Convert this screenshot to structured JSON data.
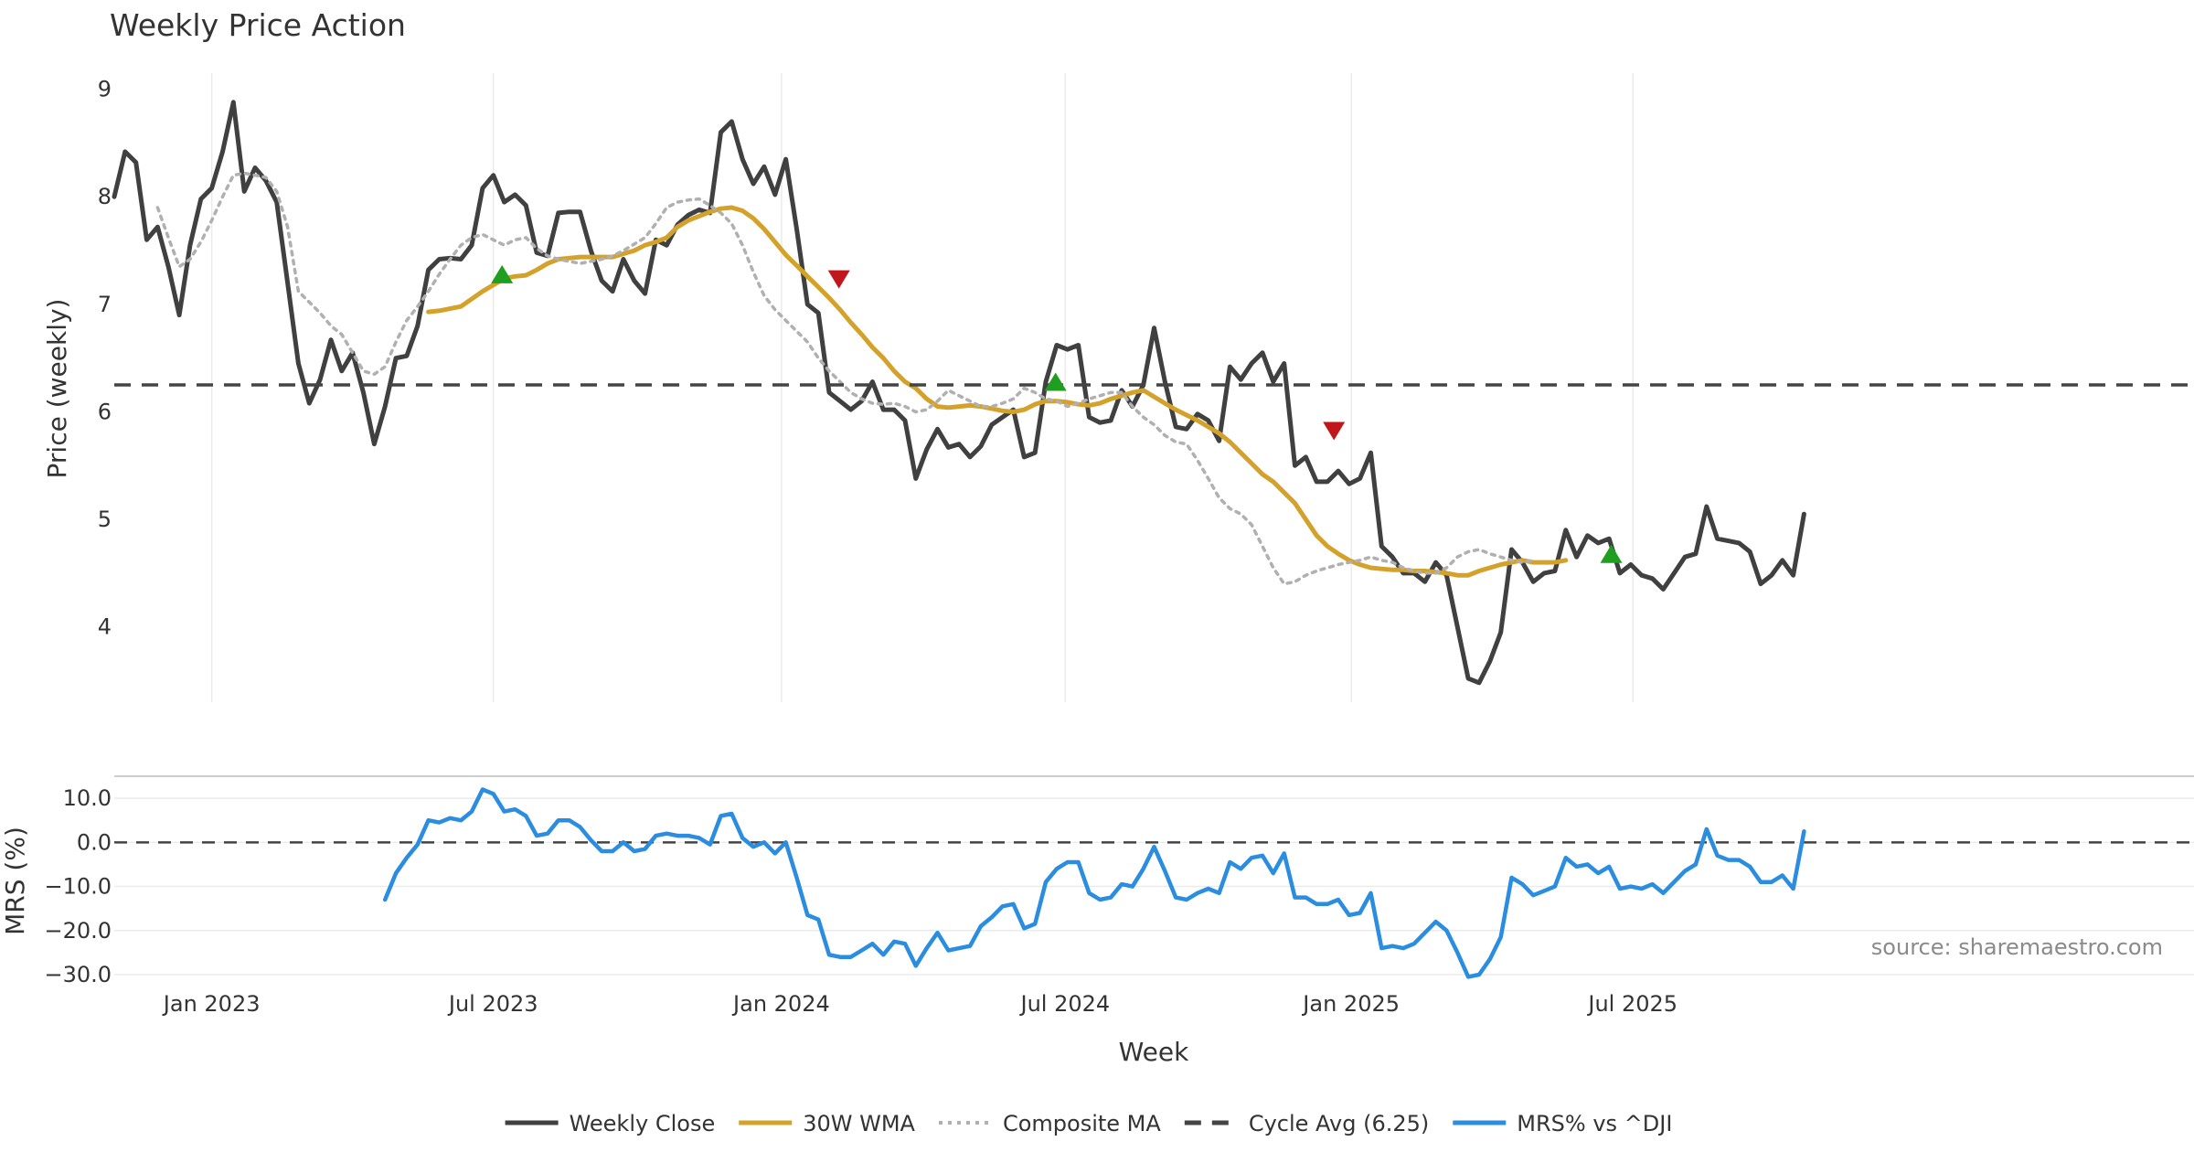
{
  "chart_data": {
    "type": "line",
    "title": "Weekly Price Action",
    "xlabel": "Week",
    "source": "source: sharemaestro.com",
    "x_range": [
      0,
      192
    ],
    "x_ticks": [
      {
        "label": "Jan 2023",
        "x": 9
      },
      {
        "label": "Jul 2023",
        "x": 35
      },
      {
        "label": "Jan 2024",
        "x": 61.6
      },
      {
        "label": "Jul 2024",
        "x": 87.8
      },
      {
        "label": "Jan 2025",
        "x": 114.2
      },
      {
        "label": "Jul 2025",
        "x": 140.2
      }
    ],
    "price_panel": {
      "ylabel": "Price (weekly)",
      "ylim": [
        3.3,
        9.15
      ],
      "yticks": [
        4,
        5,
        6,
        7,
        8,
        9
      ],
      "series": [
        {
          "name": "Weekly Close",
          "color": "#404040",
          "style": "solid",
          "x_start": 0,
          "values": [
            8.0,
            8.42,
            8.32,
            7.6,
            7.72,
            7.35,
            6.9,
            7.55,
            7.98,
            8.08,
            8.42,
            8.88,
            8.05,
            8.27,
            8.15,
            7.95,
            7.2,
            6.45,
            6.08,
            6.3,
            6.67,
            6.38,
            6.55,
            6.18,
            5.7,
            6.05,
            6.5,
            6.52,
            6.8,
            7.32,
            7.42,
            7.43,
            7.42,
            7.55,
            8.08,
            8.2,
            7.95,
            8.02,
            7.92,
            7.48,
            7.45,
            7.85,
            7.86,
            7.86,
            7.5,
            7.22,
            7.12,
            7.42,
            7.22,
            7.1,
            7.6,
            7.55,
            7.74,
            7.83,
            7.88,
            7.85,
            8.6,
            8.7,
            8.35,
            8.12,
            8.28,
            8.02,
            8.35,
            7.7,
            7.0,
            6.92,
            6.18,
            6.1,
            6.02,
            6.1,
            6.28,
            6.02,
            6.02,
            5.92,
            5.38,
            5.65,
            5.84,
            5.67,
            5.7,
            5.58,
            5.68,
            5.88,
            5.95,
            6.02,
            5.58,
            5.62,
            6.28,
            6.62,
            6.58,
            6.62,
            5.95,
            5.9,
            5.92,
            6.2,
            6.05,
            6.25,
            6.78,
            6.28,
            5.86,
            5.84,
            5.98,
            5.92,
            5.73,
            6.42,
            6.3,
            6.45,
            6.55,
            6.28,
            6.45,
            5.5,
            5.58,
            5.35,
            5.35,
            5.45,
            5.33,
            5.38,
            5.62,
            4.75,
            4.65,
            4.5,
            4.5,
            4.42,
            4.6,
            4.48,
            4.0,
            3.52,
            3.48,
            3.68,
            3.95,
            4.72,
            4.6,
            4.42,
            4.5,
            4.52,
            4.9,
            4.65,
            4.85,
            4.78,
            4.82,
            4.5,
            4.58,
            4.48,
            4.45,
            4.35,
            4.5,
            4.65,
            4.68,
            5.12,
            4.82,
            4.8,
            4.78,
            4.7,
            4.4,
            4.48,
            4.62,
            4.48,
            5.05
          ]
        },
        {
          "name": "30W WMA",
          "color": "#d4a22a",
          "style": "solid",
          "x_start": 29,
          "values": [
            6.93,
            6.94,
            6.96,
            6.98,
            7.05,
            7.12,
            7.18,
            7.24,
            7.26,
            7.27,
            7.32,
            7.38,
            7.42,
            7.43,
            7.44,
            7.44,
            7.44,
            7.44,
            7.47,
            7.5,
            7.55,
            7.58,
            7.62,
            7.72,
            7.78,
            7.82,
            7.86,
            7.89,
            7.9,
            7.87,
            7.8,
            7.7,
            7.58,
            7.46,
            7.36,
            7.26,
            7.16,
            7.06,
            6.95,
            6.83,
            6.72,
            6.6,
            6.5,
            6.38,
            6.28,
            6.22,
            6.12,
            6.05,
            6.04,
            6.05,
            6.06,
            6.05,
            6.03,
            6.01,
            6.0,
            6.02,
            6.07,
            6.1,
            6.1,
            6.09,
            6.07,
            6.06,
            6.08,
            6.12,
            6.15,
            6.18,
            6.2,
            6.14,
            6.08,
            6.02,
            5.97,
            5.92,
            5.86,
            5.8,
            5.72,
            5.62,
            5.52,
            5.42,
            5.35,
            5.25,
            5.15,
            5.0,
            4.85,
            4.75,
            4.68,
            4.62,
            4.58,
            4.55,
            4.54,
            4.53,
            4.53,
            4.52,
            4.52,
            4.51,
            4.5,
            4.48,
            4.48,
            4.52,
            4.55,
            4.58,
            4.6,
            4.62,
            4.6,
            4.6,
            4.6,
            4.62
          ]
        },
        {
          "name": "Composite MA",
          "color": "#b0b0b0",
          "style": "dotted",
          "x_start": 4,
          "values": [
            7.9,
            7.62,
            7.35,
            7.42,
            7.58,
            7.78,
            8.0,
            8.2,
            8.22,
            8.2,
            8.18,
            8.05,
            7.72,
            7.12,
            7.02,
            6.92,
            6.8,
            6.72,
            6.55,
            6.38,
            6.35,
            6.42,
            6.65,
            6.85,
            6.98,
            7.12,
            7.28,
            7.42,
            7.55,
            7.62,
            7.65,
            7.6,
            7.55,
            7.6,
            7.62,
            7.52,
            7.45,
            7.42,
            7.4,
            7.38,
            7.4,
            7.42,
            7.45,
            7.5,
            7.56,
            7.62,
            7.75,
            7.9,
            7.95,
            7.97,
            7.98,
            7.92,
            7.85,
            7.75,
            7.55,
            7.3,
            7.08,
            6.95,
            6.85,
            6.75,
            6.65,
            6.5,
            6.38,
            6.28,
            6.18,
            6.12,
            6.08,
            6.07,
            6.08,
            6.05,
            6.0,
            6.02,
            6.1,
            6.2,
            6.15,
            6.1,
            6.05,
            6.05,
            6.08,
            6.12,
            6.22,
            6.18,
            6.12,
            6.1,
            6.05,
            6.08,
            6.12,
            6.15,
            6.18,
            6.18,
            6.05,
            5.95,
            5.88,
            5.78,
            5.72,
            5.7,
            5.55,
            5.38,
            5.2,
            5.1,
            5.05,
            4.95,
            4.75,
            4.55,
            4.4,
            4.42,
            4.48,
            4.52,
            4.55,
            4.58,
            4.6,
            4.62,
            4.65,
            4.62,
            4.6,
            4.55,
            4.52,
            4.5,
            4.5,
            4.55,
            4.65,
            4.7,
            4.72,
            4.68,
            4.65,
            4.62,
            4.6,
            4.62
          ]
        },
        {
          "name": "Cycle Avg (6.25)",
          "color": "#444444",
          "style": "dashed",
          "value": 6.25
        }
      ],
      "signals": [
        {
          "type": "buy",
          "x": 35.8,
          "y": 7.28,
          "color": "#1f9e1f"
        },
        {
          "type": "sell",
          "x": 66.9,
          "y": 7.24,
          "color": "#c0171d"
        },
        {
          "type": "buy",
          "x": 86.9,
          "y": 6.28,
          "color": "#1f9e1f"
        },
        {
          "type": "sell",
          "x": 112.6,
          "y": 5.83,
          "color": "#c0171d"
        },
        {
          "type": "buy",
          "x": 138.2,
          "y": 4.68,
          "color": "#1f9e1f"
        }
      ]
    },
    "mrs_panel": {
      "ylabel": "MRS (%)",
      "ylim": [
        -30,
        15
      ],
      "yticks": [
        10,
        0,
        -10,
        -20,
        -30
      ],
      "ytick_labels": [
        "10.0",
        "0.0",
        "−10.0",
        "−20.0",
        "−30.0"
      ],
      "zero_line": 0,
      "series": [
        {
          "name": "MRS% vs ^DJI",
          "color": "#2b8de0",
          "style": "solid",
          "x_start": 25,
          "values": [
            -13.0,
            -7.0,
            -3.5,
            -0.5,
            5.0,
            4.5,
            5.5,
            5.0,
            7.0,
            12.0,
            11.0,
            7.0,
            7.5,
            6.0,
            1.5,
            2.0,
            5.0,
            5.0,
            3.5,
            0.5,
            -2.0,
            -2.0,
            0.0,
            -2.0,
            -1.5,
            1.5,
            2.0,
            1.5,
            1.5,
            1.0,
            -0.5,
            6.0,
            6.5,
            1.0,
            -1.0,
            0.0,
            -2.5,
            0.0,
            -8.0,
            -16.5,
            -17.5,
            -25.5,
            -26.0,
            -26.0,
            -24.5,
            -23.0,
            -25.5,
            -22.5,
            -23.0,
            -28.0,
            -24.0,
            -20.5,
            -24.5,
            -24.0,
            -23.5,
            -19.0,
            -17.0,
            -14.5,
            -14.0,
            -19.5,
            -18.5,
            -9.0,
            -6.0,
            -4.5,
            -4.5,
            -11.5,
            -13.0,
            -12.5,
            -9.5,
            -10.0,
            -6.0,
            -1.0,
            -6.5,
            -12.5,
            -13.0,
            -11.5,
            -10.5,
            -11.5,
            -4.5,
            -6.0,
            -3.5,
            -3.0,
            -7.0,
            -2.5,
            -12.5,
            -12.5,
            -14.0,
            -14.0,
            -13.0,
            -16.5,
            -16.0,
            -11.5,
            -24.0,
            -23.5,
            -24.0,
            -23.0,
            -20.5,
            -18.0,
            -20.0,
            -25.0,
            -30.5,
            -30.0,
            -26.5,
            -21.5,
            -8.0,
            -9.5,
            -12.0,
            -11.0,
            -10.0,
            -3.5,
            -5.5,
            -5.0,
            -7.0,
            -5.5,
            -10.5,
            -10.0,
            -10.5,
            -9.5,
            -11.5,
            -9.0,
            -6.5,
            -5.0,
            3.0,
            -3.0,
            -4.0,
            -4.0,
            -5.5,
            -9.0,
            -9.0,
            -7.5,
            -10.5,
            2.5
          ]
        }
      ]
    },
    "legend": [
      {
        "label": "Weekly Close",
        "color": "#404040",
        "style": "solid"
      },
      {
        "label": "30W WMA",
        "color": "#d4a22a",
        "style": "solid"
      },
      {
        "label": "Composite MA",
        "color": "#b0b0b0",
        "style": "dotted"
      },
      {
        "label": "Cycle Avg (6.25)",
        "color": "#444444",
        "style": "dashed"
      },
      {
        "label": "MRS% vs ^DJI",
        "color": "#2b8de0",
        "style": "solid"
      }
    ],
    "legend_position": "bottom-center"
  }
}
